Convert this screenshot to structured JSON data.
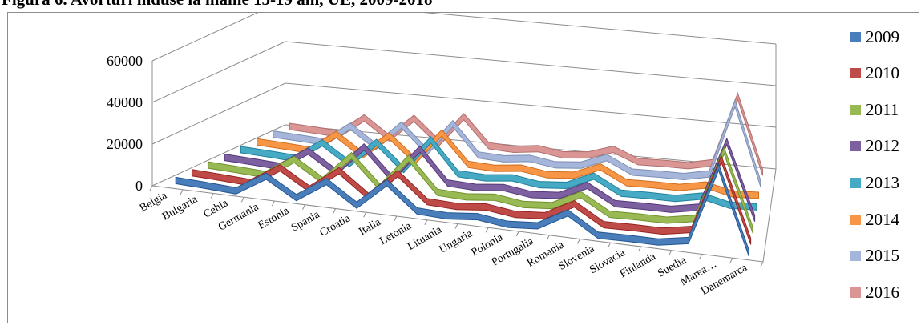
{
  "figure": {
    "title": "Figura 6. Avorturi induse la mame 15-19 ani, UE, 2009-2018"
  },
  "chart_data": {
    "type": "line",
    "style": "3d-line",
    "categories": [
      "Belgia",
      "Bulgaria",
      "Cehia",
      "Germania",
      "Estonia",
      "Spania",
      "Croatia",
      "Italia",
      "Letonia",
      "Lituania",
      "Ungaria",
      "Polonia",
      "Portugalia",
      "Romania",
      "Slovenia",
      "Slovacia",
      "Finlanda",
      "Suedia",
      "Marea…",
      "Danemarca"
    ],
    "yticks": [
      "0",
      "20000",
      "40000",
      "60000"
    ],
    "ylim": [
      0,
      60000
    ],
    "grid": true,
    "legend_position": "right",
    "series": [
      {
        "name": "2009",
        "color": "#4a7ebb",
        "values": [
          1600,
          1000,
          200,
          9000,
          500,
          10000,
          400,
          13000,
          1200,
          600,
          2000,
          100,
          1200,
          9200,
          200,
          500,
          500,
          3000,
          40000,
          600
        ]
      },
      {
        "name": "2010",
        "color": "#be4b48",
        "values": [
          1600,
          1000,
          200,
          9000,
          500,
          11000,
          400,
          13000,
          1200,
          600,
          2000,
          100,
          1200,
          8500,
          200,
          500,
          500,
          3000,
          38500,
          600
        ]
      },
      {
        "name": "2011",
        "color": "#98b954",
        "values": [
          1600,
          1000,
          200,
          9000,
          500,
          14000,
          400,
          16000,
          1200,
          600,
          2000,
          100,
          1200,
          8000,
          200,
          500,
          500,
          3000,
          37000,
          600
        ]
      },
      {
        "name": "2012",
        "color": "#7d60a0",
        "values": [
          1600,
          1000,
          200,
          9000,
          500,
          14000,
          400,
          16000,
          1200,
          600,
          2000,
          100,
          1200,
          7500,
          200,
          500,
          500,
          3000,
          36000,
          600
        ]
      },
      {
        "name": "2013",
        "color": "#46aac4",
        "values": [
          1600,
          1000,
          200,
          9000,
          500,
          12000,
          400,
          16000,
          1200,
          600,
          2000,
          100,
          1200,
          7000,
          200,
          500,
          500,
          3000,
          0,
          600
        ]
      },
      {
        "name": "2014",
        "color": "#f79646",
        "values": [
          1600,
          1000,
          200,
          9000,
          500,
          11000,
          400,
          15000,
          1200,
          600,
          2000,
          100,
          1200,
          6500,
          200,
          500,
          500,
          3000,
          0,
          600
        ]
      },
      {
        "name": "2015",
        "color": "#a5b6da",
        "values": [
          1600,
          1000,
          200,
          9000,
          500,
          12000,
          400,
          15000,
          1200,
          600,
          2000,
          100,
          1200,
          6000,
          200,
          500,
          500,
          3000,
          38000,
          600
        ]
      },
      {
        "name": "2016",
        "color": "#d99694",
        "values": [
          1600,
          1000,
          200,
          9000,
          500,
          11000,
          400,
          14000,
          1200,
          600,
          2000,
          100,
          1200,
          5000,
          200,
          500,
          500,
          3000,
          36000,
          600
        ]
      }
    ]
  }
}
